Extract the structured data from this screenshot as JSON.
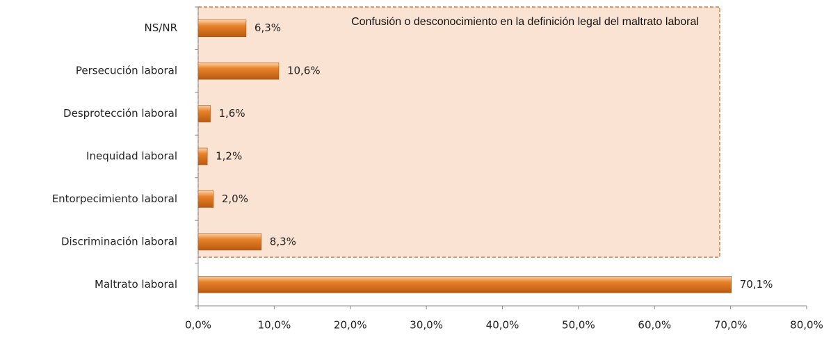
{
  "chart_data": {
    "type": "bar",
    "orientation": "horizontal",
    "annotation": "Confusión o desconocimiento en la definición legal del maltrato laboral",
    "categories": [
      "NS/NR",
      "Persecución laboral",
      "Desprotección laboral",
      "Inequidad laboral",
      "Entorpecimiento laboral",
      "Discriminación laboral",
      "Maltrato laboral"
    ],
    "values": [
      6.3,
      10.6,
      1.6,
      1.2,
      2.0,
      8.3,
      70.1
    ],
    "value_labels": [
      "6,3%",
      "10,6%",
      "1,6%",
      "1,2%",
      "2,0%",
      "8,3%",
      "70,1%"
    ],
    "color": "#e8822a",
    "xlim": [
      0,
      80
    ],
    "xticks": [
      {
        "value": 0,
        "label": "0,0%"
      },
      {
        "value": 10,
        "label": "10,0%"
      },
      {
        "value": 20,
        "label": "20,0%"
      },
      {
        "value": 30,
        "label": "30,0%"
      },
      {
        "value": 40,
        "label": "40,0%"
      },
      {
        "value": 50,
        "label": "50,0%"
      },
      {
        "value": 60,
        "label": "60,0%"
      },
      {
        "value": 70,
        "label": "70,0%"
      },
      {
        "value": 80,
        "label": "80,0%"
      }
    ]
  }
}
